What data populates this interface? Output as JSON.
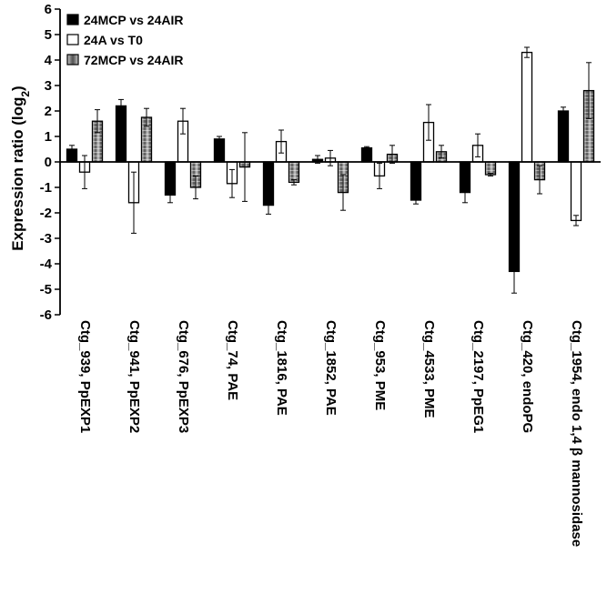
{
  "chart_data": {
    "type": "bar",
    "ylabel_main": "Expression ratio (log",
    "ylabel_sub": "2",
    "ylabel_close": ")",
    "ylim": [
      -6,
      6
    ],
    "yticks": [
      "6",
      "5",
      "4",
      "3",
      "2",
      "1",
      "0",
      "-1",
      "-2",
      "-3",
      "-4",
      "-5",
      "-6"
    ],
    "legend_position": "top-left",
    "grid": false,
    "categories": [
      "Ctg_939, PpEXP1",
      "Ctg_941, PpEXP2",
      "Ctg_676, PpEXP3",
      "Ctg_74, PAE",
      "Ctg_1816, PAE",
      "Ctg_1852, PAE",
      "Ctg_953, PME",
      "Ctg_4533, PME",
      "Ctg_2197, PpEG1",
      "Ctg_420, endoPG",
      "Ctg_1954, endo 1,4 β mannosidase"
    ],
    "series": [
      {
        "name": "24MCP vs 24AIR",
        "color": "#000000",
        "style": "solid",
        "values": [
          0.5,
          2.2,
          -1.3,
          0.9,
          -1.7,
          0.1,
          0.55,
          -1.5,
          -1.2,
          -4.3,
          2.0
        ],
        "errors": [
          0.15,
          0.25,
          0.3,
          0.1,
          0.35,
          0.15,
          0.05,
          0.15,
          0.4,
          0.85,
          0.15
        ]
      },
      {
        "name": "24A vs T0",
        "color": "#ffffff",
        "style": "hollow",
        "values": [
          -0.4,
          -1.6,
          1.6,
          -0.85,
          0.8,
          0.15,
          -0.55,
          1.55,
          0.65,
          4.3,
          -2.3
        ],
        "errors": [
          0.65,
          1.2,
          0.5,
          0.55,
          0.45,
          0.3,
          0.5,
          0.7,
          0.45,
          0.2,
          0.2
        ]
      },
      {
        "name": "72MCP vs 24AIR",
        "color": "#909090",
        "style": "gradient",
        "values": [
          1.6,
          1.75,
          -1.0,
          -0.2,
          -0.8,
          -1.2,
          0.3,
          0.4,
          -0.5,
          -0.7,
          2.8
        ],
        "errors": [
          0.45,
          0.35,
          0.45,
          1.35,
          0.1,
          0.7,
          0.35,
          0.25,
          0.05,
          0.55,
          1.1
        ]
      }
    ]
  }
}
